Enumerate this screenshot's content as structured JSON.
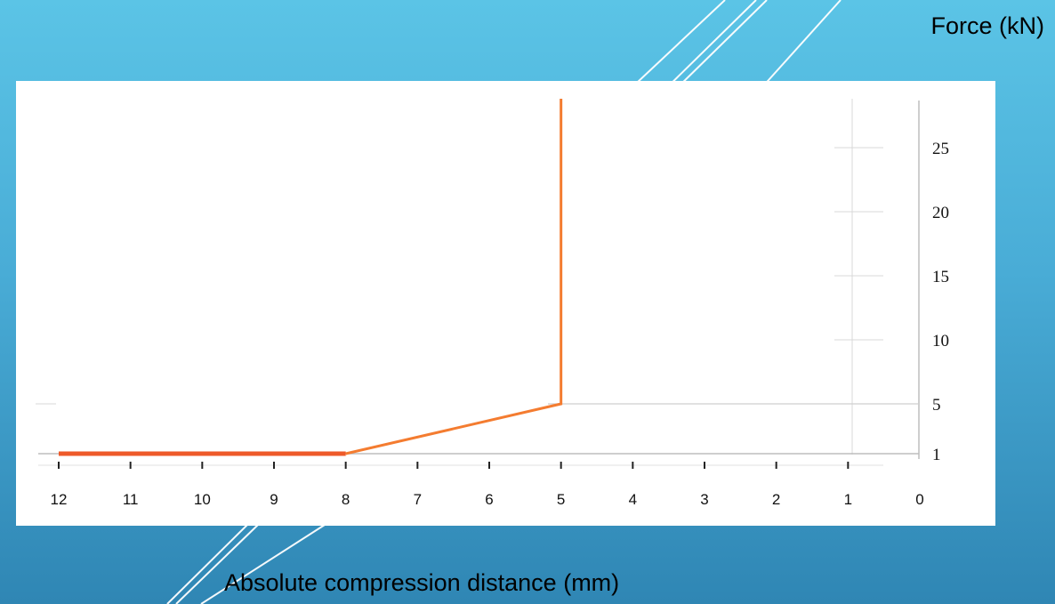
{
  "y_axis_label": "Force (kN)",
  "x_axis_label": "Absolute compression distance (mm)",
  "chart_data": {
    "type": "line",
    "title": "",
    "xlabel": "Absolute compression distance (mm)",
    "ylabel": "Force (kN)",
    "x_reversed": true,
    "xlim": [
      12,
      0
    ],
    "ylim": [
      0,
      29
    ],
    "x_ticks": [
      12,
      11,
      10,
      9,
      8,
      7,
      6,
      5,
      4,
      3,
      2,
      1,
      0
    ],
    "y_ticks": [
      1,
      5,
      10,
      15,
      20,
      25
    ],
    "grid": false,
    "series": [
      {
        "color": "#f47c30",
        "points": [
          {
            "x": 12,
            "y": 1
          },
          {
            "x": 8,
            "y": 1
          },
          {
            "x": 5,
            "y": 5
          },
          {
            "x": 5,
            "y": 29
          }
        ]
      }
    ]
  },
  "colors": {
    "series": "#f47c30",
    "series_flat": "#ee5a2a",
    "axis": "#bdbdbd",
    "background_top": "#5bc4e6",
    "background_bottom": "#2f86b4"
  }
}
